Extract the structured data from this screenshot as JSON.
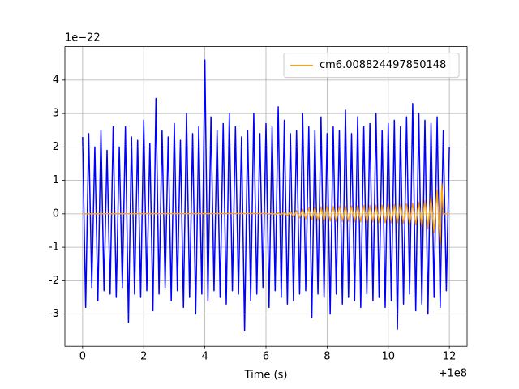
{
  "chart_data": {
    "type": "line",
    "xlabel": "Time (s)",
    "x_offset_label": "+1e8",
    "y_offset_label": "1e−22",
    "xlim": [
      -0.58,
      12.58
    ],
    "ylim": [
      -3.96,
      5.0
    ],
    "xticks": [
      0,
      2,
      4,
      6,
      8,
      10,
      12
    ],
    "yticks": [
      -3,
      -2,
      -1,
      0,
      1,
      2,
      3,
      4
    ],
    "grid": true,
    "legend": "upper right",
    "series": [
      {
        "color": "blue",
        "x": [
          0.0,
          0.1,
          0.2,
          0.3,
          0.4,
          0.5,
          0.6,
          0.7,
          0.8,
          0.9,
          1.0,
          1.1,
          1.2,
          1.3,
          1.4,
          1.5,
          1.6,
          1.7,
          1.8,
          1.9,
          2.0,
          2.1,
          2.2,
          2.3,
          2.4,
          2.5,
          2.6,
          2.7,
          2.8,
          2.9,
          3.0,
          3.1,
          3.2,
          3.3,
          3.4,
          3.5,
          3.6,
          3.7,
          3.8,
          3.9,
          4.0,
          4.1,
          4.2,
          4.3,
          4.4,
          4.5,
          4.6,
          4.7,
          4.8,
          4.9,
          5.0,
          5.1,
          5.2,
          5.3,
          5.4,
          5.5,
          5.6,
          5.7,
          5.8,
          5.9,
          6.0,
          6.1,
          6.2,
          6.3,
          6.4,
          6.5,
          6.6,
          6.7,
          6.8,
          6.9,
          7.0,
          7.1,
          7.2,
          7.3,
          7.4,
          7.5,
          7.6,
          7.7,
          7.8,
          7.9,
          8.0,
          8.1,
          8.2,
          8.3,
          8.4,
          8.5,
          8.6,
          8.7,
          8.8,
          8.9,
          9.0,
          9.1,
          9.2,
          9.3,
          9.4,
          9.5,
          9.6,
          9.7,
          9.8,
          9.9,
          10.0,
          10.1,
          10.2,
          10.3,
          10.4,
          10.5,
          10.6,
          10.7,
          10.8,
          10.9,
          11.0,
          11.1,
          11.2,
          11.3,
          11.4,
          11.5,
          11.6,
          11.7,
          11.8,
          11.9,
          12.0
        ],
        "values": [
          2.3,
          -2.8,
          2.4,
          -2.2,
          2.0,
          -2.6,
          2.5,
          -2.3,
          1.9,
          -2.4,
          2.6,
          -2.5,
          2.0,
          -2.2,
          2.6,
          -3.25,
          2.3,
          -2.4,
          2.2,
          -2.5,
          2.8,
          -2.3,
          2.1,
          -2.9,
          3.45,
          -2.4,
          2.5,
          -2.2,
          2.3,
          -2.6,
          2.7,
          -2.3,
          2.2,
          -2.8,
          3.0,
          -2.5,
          2.4,
          -3.0,
          2.6,
          -2.4,
          4.6,
          -2.6,
          2.9,
          -2.3,
          2.5,
          -2.5,
          2.7,
          -2.7,
          3.0,
          -2.3,
          2.6,
          -2.4,
          2.3,
          -3.5,
          2.5,
          -2.6,
          3.0,
          -2.4,
          2.4,
          -2.2,
          2.7,
          -2.8,
          2.6,
          -2.3,
          3.2,
          -2.5,
          2.8,
          -2.7,
          2.4,
          -2.6,
          2.5,
          -2.4,
          3.0,
          -2.3,
          2.6,
          -3.1,
          2.5,
          -2.4,
          2.9,
          -2.5,
          2.4,
          -3.0,
          2.6,
          -2.4,
          2.5,
          -2.7,
          3.1,
          -2.5,
          2.4,
          -2.6,
          2.9,
          -2.8,
          2.6,
          -2.4,
          2.7,
          -2.6,
          3.0,
          -2.5,
          2.5,
          -2.8,
          2.7,
          -2.6,
          2.8,
          -3.45,
          2.6,
          -2.7,
          2.9,
          -2.4,
          3.3,
          -2.9,
          3.0,
          -2.7,
          2.8,
          -3.0,
          2.7,
          -2.5,
          2.9,
          -2.8,
          2.5,
          -2.3,
          2.0
        ]
      },
      {
        "name": "cm6.008824497850148",
        "color": "orange",
        "x": [
          0.0,
          6.0,
          6.1,
          6.2,
          6.3,
          6.4,
          6.5,
          6.6,
          6.7,
          6.8,
          6.9,
          7.0,
          7.1,
          7.2,
          7.3,
          7.4,
          7.5,
          7.6,
          7.7,
          7.8,
          7.9,
          8.0,
          8.1,
          8.2,
          8.3,
          8.4,
          8.5,
          8.6,
          8.7,
          8.8,
          8.9,
          9.0,
          9.1,
          9.2,
          9.3,
          9.4,
          9.5,
          9.6,
          9.7,
          9.8,
          9.9,
          10.0,
          10.1,
          10.2,
          10.3,
          10.4,
          10.5,
          10.6,
          10.7,
          10.8,
          10.9,
          11.0,
          11.1,
          11.2,
          11.3,
          11.4,
          11.5,
          11.6,
          11.7,
          11.75,
          11.8,
          12.0
        ],
        "values": [
          0,
          0.01,
          -0.01,
          0.02,
          -0.02,
          0.03,
          -0.03,
          0.05,
          -0.06,
          0.07,
          -0.09,
          0.1,
          -0.12,
          0.14,
          -0.15,
          0.17,
          -0.18,
          0.19,
          -0.2,
          0.21,
          -0.22,
          0.22,
          -0.22,
          0.22,
          -0.23,
          0.23,
          -0.23,
          0.23,
          -0.23,
          0.24,
          -0.24,
          0.24,
          -0.24,
          0.25,
          -0.25,
          0.25,
          -0.25,
          0.26,
          -0.26,
          0.26,
          -0.27,
          0.27,
          -0.27,
          0.28,
          -0.28,
          0.29,
          -0.29,
          0.3,
          -0.31,
          0.32,
          -0.33,
          0.35,
          -0.37,
          0.4,
          -0.44,
          0.5,
          -0.57,
          0.7,
          -0.9,
          0.9,
          0,
          0
        ]
      }
    ]
  }
}
